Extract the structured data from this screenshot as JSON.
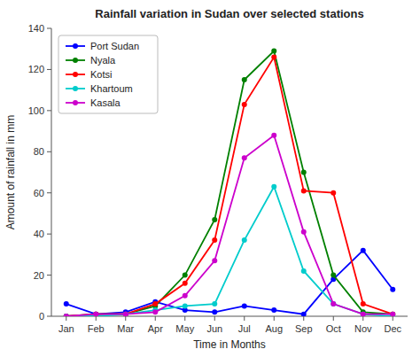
{
  "chart_data": {
    "type": "line",
    "title": "Rainfall variation in Sudan over selected stations",
    "xlabel": "Time in Months",
    "ylabel": "Amount of rainfall in mm",
    "categories": [
      "Jan",
      "Feb",
      "Mar",
      "Apr",
      "May",
      "Jun",
      "Jul",
      "Aug",
      "Sep",
      "Oct",
      "Nov",
      "Dec"
    ],
    "series": [
      {
        "name": "Port Sudan",
        "color": "#0000ff",
        "values": [
          6,
          1,
          2,
          7,
          3,
          2,
          5,
          3,
          1,
          18,
          32,
          13
        ]
      },
      {
        "name": "Nyala",
        "color": "#008000",
        "values": [
          0,
          1,
          1,
          5,
          20,
          47,
          115,
          129,
          70,
          20,
          2,
          1
        ]
      },
      {
        "name": "Kotsi",
        "color": "#ff0000",
        "values": [
          0,
          1,
          1,
          6,
          16,
          37,
          103,
          126,
          61,
          60,
          6,
          1
        ]
      },
      {
        "name": "Khartoum",
        "color": "#00cccc",
        "values": [
          0,
          0,
          1,
          3,
          5,
          6,
          37,
          63,
          22,
          6,
          1,
          0
        ]
      },
      {
        "name": "Kasala",
        "color": "#cc00cc",
        "values": [
          0,
          1,
          1,
          2,
          10,
          27,
          77,
          88,
          41,
          6,
          1,
          1
        ]
      }
    ],
    "ylim": [
      0,
      140
    ],
    "yticks": [
      0,
      20,
      40,
      60,
      80,
      100,
      120,
      140
    ],
    "grid": false,
    "legend": "upper left",
    "marker": "circle"
  }
}
